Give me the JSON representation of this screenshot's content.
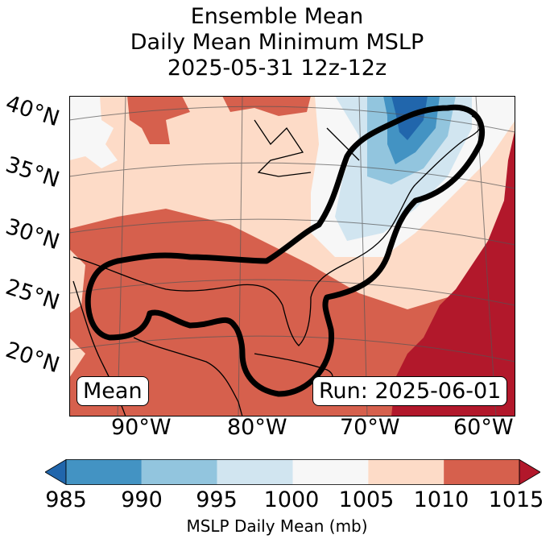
{
  "title": {
    "line1": "Ensemble Mean",
    "line2": "Daily Mean Minimum MSLP",
    "line3": "2025-05-31 12z-12z"
  },
  "lat_labels": [
    "40°N",
    "35°N",
    "30°N",
    "25°N",
    "20°N"
  ],
  "lon_labels": [
    "90°W",
    "80°W",
    "70°W",
    "60°W"
  ],
  "annotations": {
    "left": "Mean",
    "right": "Run: 2025-06-01"
  },
  "colorbar": {
    "ticks": [
      "985",
      "990",
      "995",
      "1000",
      "1005",
      "1010",
      "1015"
    ],
    "label": "MSLP Daily Mean (mb)",
    "colors": [
      "#2166ac",
      "#4393c3",
      "#92c5de",
      "#d1e5f0",
      "#f7f7f7",
      "#fddbc7",
      "#d6604d",
      "#b2182b"
    ]
  }
}
